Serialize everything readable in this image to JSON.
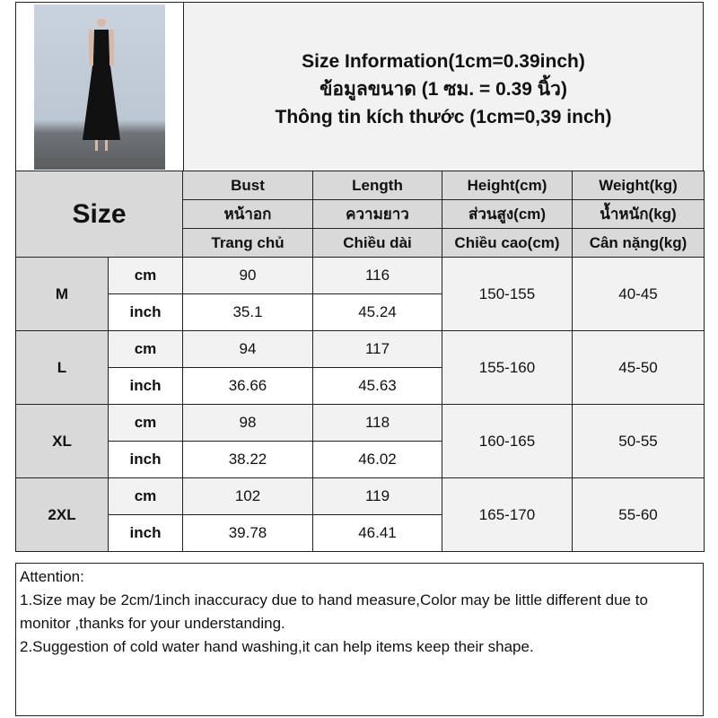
{
  "title": {
    "lines": [
      "Size Information(1cm=0.39inch)",
      "ข้อมูลขนาด (1 ซม. = 0.39 นิ้ว)",
      "Thông tin kích thước (1cm=0,39 inch)"
    ]
  },
  "table": {
    "size_label": "Size",
    "headers": [
      [
        "Bust",
        "Length",
        "Height(cm)",
        "Weight(kg)"
      ],
      [
        "หน้าอก",
        "ความยาว",
        "ส่วนสูง(cm)",
        "น้ำหนัก(kg)"
      ],
      [
        "Trang chủ",
        "Chiều dài",
        "Chiều cao(cm)",
        "Cân nặng(kg)"
      ]
    ],
    "unit_cm": "cm",
    "unit_inch": "inch",
    "rows": [
      {
        "size": "M",
        "bust_cm": "90",
        "length_cm": "116",
        "bust_in": "35.1",
        "length_in": "45.24",
        "height": "150-155",
        "weight": "40-45"
      },
      {
        "size": "L",
        "bust_cm": "94",
        "length_cm": "117",
        "bust_in": "36.66",
        "length_in": "45.63",
        "height": "155-160",
        "weight": "45-50"
      },
      {
        "size": "XL",
        "bust_cm": "98",
        "length_cm": "118",
        "bust_in": "38.22",
        "length_in": "46.02",
        "height": "160-165",
        "weight": "50-55"
      },
      {
        "size": "2XL",
        "bust_cm": "102",
        "length_cm": "119",
        "bust_in": "39.78",
        "length_in": "46.41",
        "height": "165-170",
        "weight": "55-60"
      }
    ]
  },
  "notes": [
    "Attention:",
    "1.Size may be 2cm/1inch inaccuracy due to hand measure,Color may be little different due to monitor ,thanks for your understanding.",
    "2.Suggestion of cold water hand washing,it can help items keep their shape."
  ]
}
